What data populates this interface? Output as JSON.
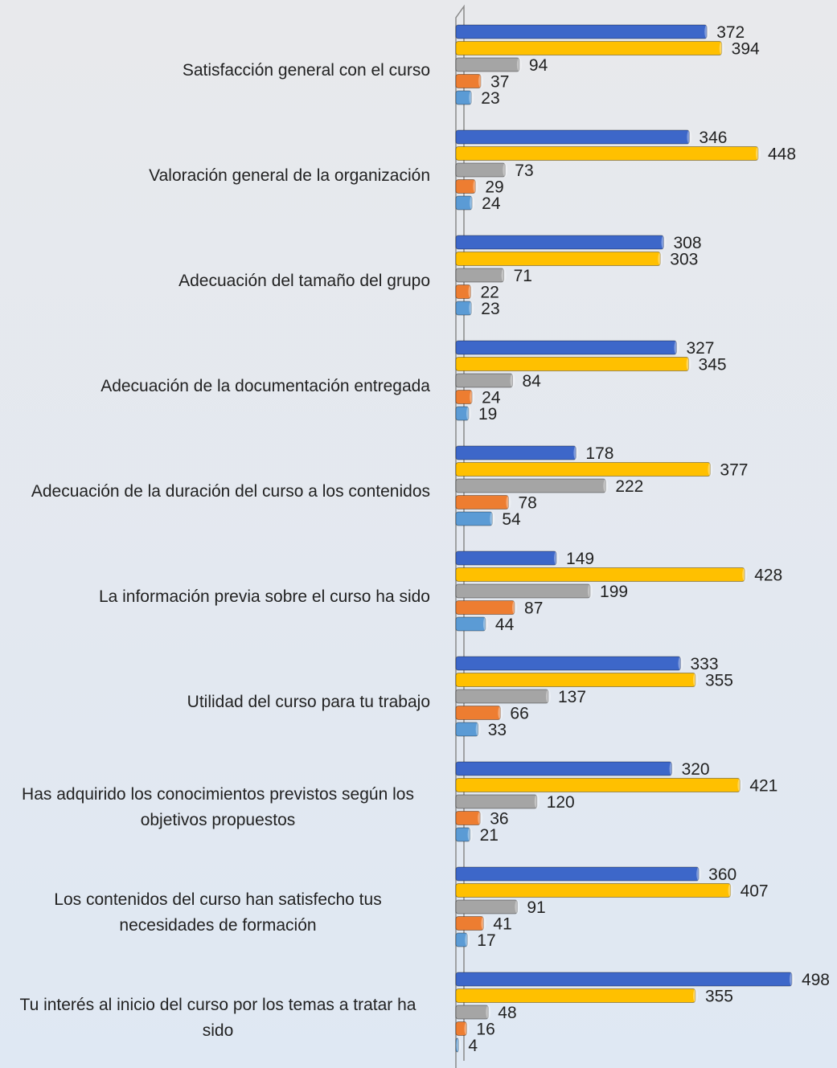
{
  "chart_data": {
    "type": "bar",
    "orientation": "horizontal",
    "categories": [
      "Satisfacción general con el curso",
      "Valoración general de la organización",
      "Adecuación del tamaño del grupo",
      "Adecuación de la documentación entregada",
      "Adecuación de la duración del curso a los contenidos",
      "La información previa sobre el curso ha sido",
      "Utilidad del curso para tu trabajo",
      "Has adquirido los conocimientos previstos según los objetivos propuestos",
      "Los contenidos del curso han satisfecho tus necesidades de formación",
      "Tu interés al inicio del curso por los temas a tratar ha sido"
    ],
    "series": [
      {
        "color": "#3d67c9",
        "values": [
          372,
          346,
          308,
          327,
          178,
          149,
          333,
          320,
          360,
          498
        ]
      },
      {
        "color": "#ffc000",
        "values": [
          394,
          448,
          303,
          345,
          377,
          428,
          355,
          421,
          407,
          355
        ]
      },
      {
        "color": "#a5a5a5",
        "values": [
          94,
          73,
          71,
          84,
          222,
          199,
          137,
          120,
          91,
          48
        ]
      },
      {
        "color": "#ed7d31",
        "values": [
          37,
          29,
          22,
          24,
          78,
          87,
          66,
          36,
          41,
          16
        ]
      },
      {
        "color": "#5b9bd5",
        "values": [
          23,
          24,
          23,
          19,
          54,
          44,
          33,
          21,
          17,
          4
        ]
      }
    ],
    "xlim": [
      0,
      560
    ]
  }
}
